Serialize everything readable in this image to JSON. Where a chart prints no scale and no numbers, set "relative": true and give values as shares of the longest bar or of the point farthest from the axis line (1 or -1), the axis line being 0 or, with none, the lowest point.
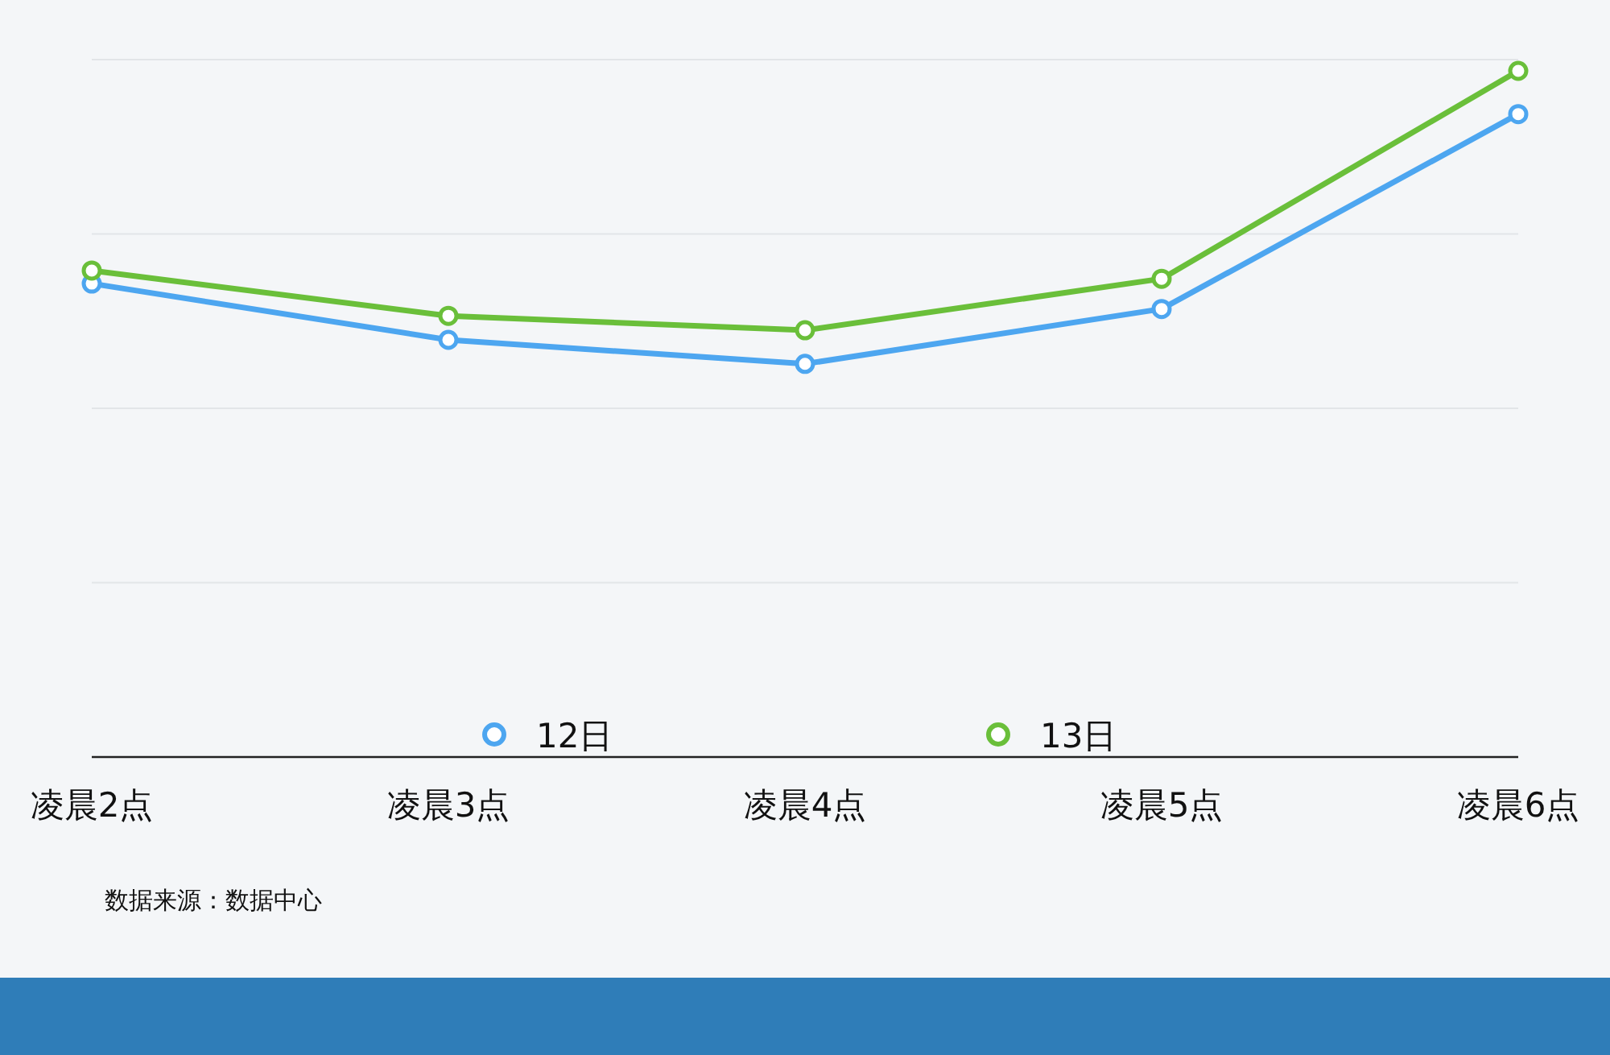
{
  "chart_data": {
    "type": "line",
    "relative": true,
    "categories": [
      "凌晨2点",
      "凌晨3点",
      "凌晨4点",
      "凌晨5点",
      "凌晨6点"
    ],
    "series": [
      {
        "name": "12日",
        "color": "#4da6f0",
        "values": [
          0.69,
          0.608,
          0.573,
          0.653,
          0.937
        ]
      },
      {
        "name": "13日",
        "color": "#6abf3a",
        "values": [
          0.709,
          0.643,
          0.622,
          0.697,
          1
        ]
      }
    ],
    "grid": "y",
    "legend": "bottom",
    "marker": "circle",
    "line_style": "solid",
    "annotations": [
      "数据来源：数据中心"
    ]
  }
}
